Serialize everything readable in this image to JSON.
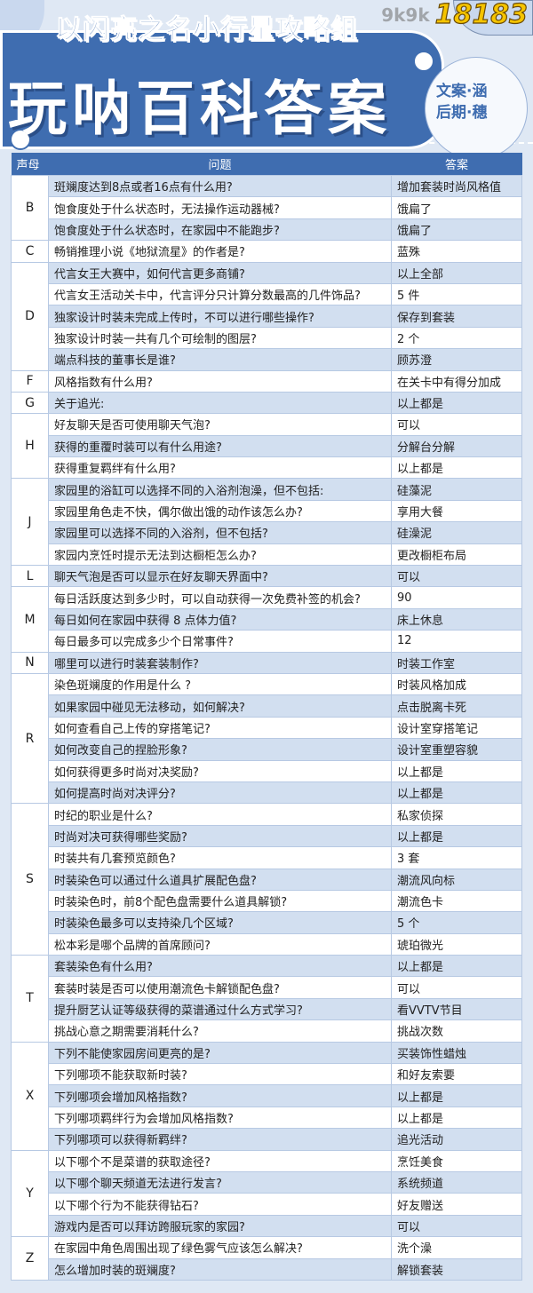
{
  "header": {
    "subtitle": "以闪亮之名小行星攻略组",
    "title": "玩呐百科答案",
    "credit_line1": "文案·涵",
    "credit_line2": "后期·穗"
  },
  "table": {
    "columns": [
      "声母",
      "问题",
      "答案"
    ],
    "groups": [
      {
        "letter": "B",
        "rows": [
          {
            "q": "斑斓度达到8点或者16点有什么用?",
            "a": "增加套装时尚风格值"
          },
          {
            "q": "饱食度处于什么状态时，无法操作运动器械?",
            "a": "饿扁了"
          },
          {
            "q": "饱食度处于什么状态时，在家园中不能跑步?",
            "a": "饿扁了"
          }
        ]
      },
      {
        "letter": "C",
        "rows": [
          {
            "q": "畅销推理小说《地狱流星》的作者是?",
            "a": "蓝殊"
          }
        ]
      },
      {
        "letter": "D",
        "rows": [
          {
            "q": "代言女王大赛中，如何代言更多商铺?",
            "a": "以上全部"
          },
          {
            "q": "代言女王活动关卡中，代言评分只计算分数最高的几件饰品?",
            "a": "5 件"
          },
          {
            "q": "独家设计时装未完成上传时，不可以进行哪些操作?",
            "a": "保存到套装"
          },
          {
            "q": "独家设计时装一共有几个可绘制的图层?",
            "a": "2 个"
          },
          {
            "q": "端点科技的董事长是谁?",
            "a": "顾苏澄"
          }
        ]
      },
      {
        "letter": "F",
        "rows": [
          {
            "q": "风格指数有什么用?",
            "a": "在关卡中有得分加成"
          }
        ]
      },
      {
        "letter": "G",
        "rows": [
          {
            "q": "关于追光:",
            "a": "以上都是"
          }
        ]
      },
      {
        "letter": "H",
        "rows": [
          {
            "q": "好友聊天是否可使用聊天气泡?",
            "a": "可以"
          },
          {
            "q": "获得的重覆时装可以有什么用途?",
            "a": "分解台分解"
          },
          {
            "q": "获得重复羁绊有什么用?",
            "a": "以上都是"
          }
        ]
      },
      {
        "letter": "J",
        "rows": [
          {
            "q": "家园里的浴缸可以选择不同的入浴剂泡澡，但不包括:",
            "a": "硅藻泥"
          },
          {
            "q": "家园里角色走不快，偶尔做出饿的动作该怎么办?",
            "a": "享用大餐"
          },
          {
            "q": "家园里可以选择不同的入浴剂，但不包括?",
            "a": "硅澡泥"
          },
          {
            "q": "家园内烹饪时提示无法到达橱柜怎么办?",
            "a": "更改橱柜布局"
          }
        ]
      },
      {
        "letter": "L",
        "rows": [
          {
            "q": "聊天气泡是否可以显示在好友聊天界面中?",
            "a": "可以"
          }
        ]
      },
      {
        "letter": "M",
        "rows": [
          {
            "q": "每日活跃度达到多少时，可以自动获得一次免费补签的机会?",
            "a": "90"
          },
          {
            "q": "每日如何在家园中获得 8 点体力值?",
            "a": "床上休息"
          },
          {
            "q": "每日最多可以完成多少个日常事件?",
            "a": "12"
          }
        ]
      },
      {
        "letter": "N",
        "rows": [
          {
            "q": "哪里可以进行时装套装制作?",
            "a": "时装工作室"
          }
        ]
      },
      {
        "letter": "R",
        "rows": [
          {
            "q": "染色斑斓度的作用是什么 ?",
            "a": "时装风格加成"
          },
          {
            "q": "如果家园中碰见无法移动，如何解决?",
            "a": "点击脱离卡死"
          },
          {
            "q": "如何查看自己上传的穿搭笔记?",
            "a": "设计室穿搭笔记"
          },
          {
            "q": "如何改变自己的捏脸形象?",
            "a": "设计室重塑容貌"
          },
          {
            "q": "如何获得更多时尚对决奖励?",
            "a": "以上都是"
          },
          {
            "q": "如何提高时尚对决评分?",
            "a": "以上都是"
          }
        ]
      },
      {
        "letter": "S",
        "rows": [
          {
            "q": "时纪的职业是什么?",
            "a": "私家侦探"
          },
          {
            "q": "时尚对决可获得哪些奖励?",
            "a": "以上都是"
          },
          {
            "q": "时装共有几套预览颜色?",
            "a": "3 套"
          },
          {
            "q": "时装染色可以通过什么道具扩展配色盘?",
            "a": "潮流风向标"
          },
          {
            "q": "时装染色时，前8个配色盘需要什么道具解锁?",
            "a": "潮流色卡"
          },
          {
            "q": "时装染色最多可以支持染几个区域?",
            "a": "5 个"
          },
          {
            "q": "松本彩是哪个品牌的首席顾问?",
            "a": "琥珀微光"
          }
        ]
      },
      {
        "letter": "T",
        "rows": [
          {
            "q": "套装染色有什么用?",
            "a": "以上都是"
          },
          {
            "q": "套装时装是否可以使用潮流色卡解锁配色盘?",
            "a": "可以"
          },
          {
            "q": "提升厨艺认证等级获得的菜谱通过什么方式学习?",
            "a": "看VVTV节目"
          },
          {
            "q": "挑战心意之期需要消耗什么?",
            "a": "挑战次数"
          }
        ]
      },
      {
        "letter": "X",
        "rows": [
          {
            "q": "下列不能使家园房间更亮的是?",
            "a": "买装饰性蜡烛"
          },
          {
            "q": "下列哪项不能获取新时装?",
            "a": "和好友索要"
          },
          {
            "q": "下列哪项会增加风格指数?",
            "a": "以上都是"
          },
          {
            "q": "下列哪项羁绊行为会增加风格指数?",
            "a": "以上都是"
          },
          {
            "q": "下列哪项可以获得新羁绊?",
            "a": "追光活动"
          }
        ]
      },
      {
        "letter": "Y",
        "rows": [
          {
            "q": "以下哪个不是菜谱的获取途径?",
            "a": "烹饪美食"
          },
          {
            "q": "以下哪个聊天频道无法进行发言?",
            "a": "系统频道"
          },
          {
            "q": "以下哪个行为不能获得钻石?",
            "a": "好友赠送"
          },
          {
            "q": "游戏内是否可以拜访跨服玩家的家园?",
            "a": "可以"
          }
        ]
      },
      {
        "letter": "Z",
        "rows": [
          {
            "q": "在家园中角色周围出现了绿色雾气应该怎么解决?",
            "a": "洗个澡"
          },
          {
            "q": "怎么增加时装的斑斓度?",
            "a": "解锁套装"
          }
        ]
      }
    ]
  },
  "watermark": {
    "text": "18183",
    "faint": "9k9k"
  },
  "colors": {
    "primary": "#3f6db0",
    "background": "#dfe8f4",
    "stripe": "#d2dff0"
  }
}
